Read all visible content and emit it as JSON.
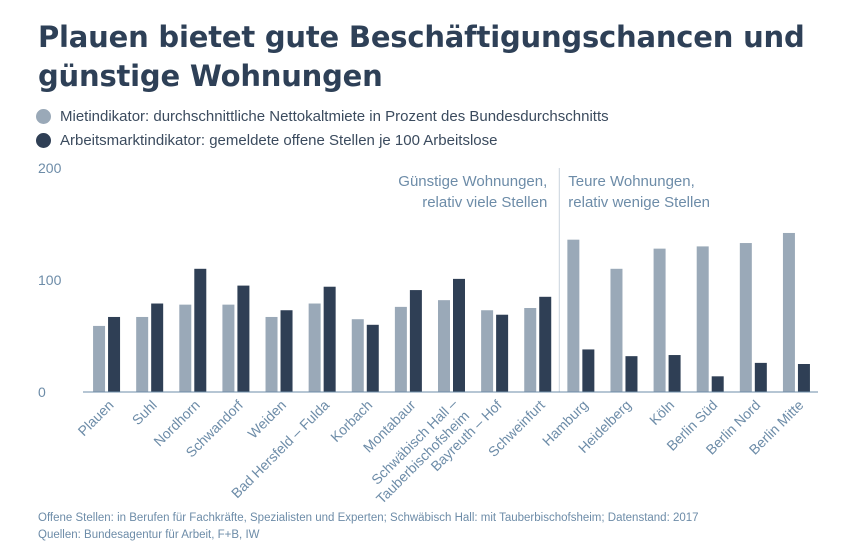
{
  "title": "Plauen bietet gute Beschäftigungschancen und günstige Wohnungen",
  "colors": {
    "light": "#9aa9b8",
    "dark": "#2f3f55"
  },
  "chart_data": {
    "type": "bar",
    "title": "Plauen bietet gute Beschäftigungschancen und günstige Wohnungen",
    "ylim": [
      0,
      200
    ],
    "yticks": [
      "0",
      "100",
      "200"
    ],
    "grid": false,
    "legend_position": "top-left",
    "categories": [
      "Plauen",
      "Suhl",
      "Nordhorn",
      "Schwandorf",
      "Weiden",
      "Bad Hersfeld – Fulda",
      "Korbach",
      "Montabaur",
      "Schwäbisch Hall – Tauberbischofsheim",
      "Bayreuth – Hof",
      "Schweinfurt",
      "Hamburg",
      "Heidelberg",
      "Köln",
      "Berlin Süd",
      "Berlin Nord",
      "Berlin Mitte"
    ],
    "category_lines": [
      [
        "Plauen"
      ],
      [
        "Suhl"
      ],
      [
        "Nordhorn"
      ],
      [
        "Schwandorf"
      ],
      [
        "Weiden"
      ],
      [
        "Bad Hersfeld – Fulda"
      ],
      [
        "Korbach"
      ],
      [
        "Montabaur"
      ],
      [
        "Schwäbisch Hall –",
        "Tauberbischofsheim"
      ],
      [
        "Bayreuth – Hof"
      ],
      [
        "Schweinfurt"
      ],
      [
        "Hamburg"
      ],
      [
        "Heidelberg"
      ],
      [
        "Köln"
      ],
      [
        "Berlin Süd"
      ],
      [
        "Berlin Nord"
      ],
      [
        "Berlin Mitte"
      ]
    ],
    "series": [
      {
        "name": "Mietindikator: durchschnittliche Nettokaltmiete in Prozent des Bundesdurchschnitts",
        "color_key": "light",
        "values": [
          59,
          67,
          78,
          78,
          67,
          79,
          65,
          76,
          82,
          73,
          75,
          136,
          110,
          128,
          130,
          133,
          142
        ]
      },
      {
        "name": "Arbeitsmarktindikator: gemeldete offene Stellen je 100 Arbeitslose",
        "color_key": "dark",
        "values": [
          67,
          79,
          110,
          95,
          73,
          94,
          60,
          91,
          101,
          69,
          85,
          38,
          32,
          33,
          14,
          26,
          25
        ]
      }
    ],
    "annotations": [
      {
        "lines": [
          "Günstige Wohnungen,",
          "relativ viele Stellen"
        ]
      },
      {
        "lines": [
          "Teure Wohnungen,",
          "relativ wenige Stellen"
        ]
      }
    ]
  },
  "footer": [
    "Offene Stellen: in Berufen für Fachkräfte, Spezialisten und Experten; Schwäbisch Hall: mit Tauberbischofsheim; Datenstand: 2017",
    "Quellen: Bundesagentur für Arbeit, F+B, IW"
  ]
}
